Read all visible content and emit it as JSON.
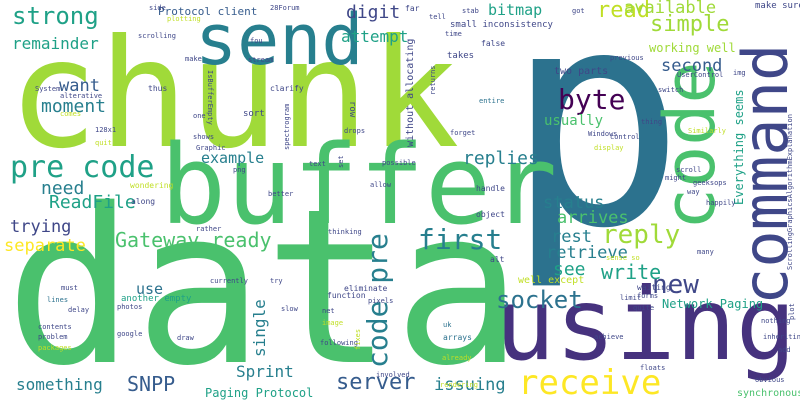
{
  "words": {
    "p": "p",
    "chunk": "chunk",
    "data": "data",
    "buffer": "buffer",
    "send": "send",
    "using": "using",
    "code": "code",
    "command": "command",
    "receive": "receive",
    "strong": "strong",
    "pre_code": "pre code",
    "gateway_ready": "Gateway ready",
    "first": "first",
    "byte": "byte",
    "socket": "socket",
    "server": "server",
    "code_pre": "code pre",
    "reply": "reply",
    "new": "new",
    "read": "read",
    "simple": "simple",
    "available": "available",
    "second": "second",
    "status": "status",
    "arrives": "arrives",
    "rest": "rest",
    "retrieve": "retrieve",
    "write": "write",
    "see": "see",
    "attempt": "attempt",
    "digit": "digit",
    "bitmap": "bitmap",
    "remainder": "remainder",
    "want": "want",
    "moment": "moment",
    "need": "need",
    "readfile": "ReadFile",
    "trying": "trying",
    "separate": "separate",
    "example": "example",
    "replies": "replies",
    "snpp": "SNPP",
    "sprint": "Sprint",
    "something": "something",
    "issuing": "issuing",
    "use": "use",
    "single": "single",
    "paging_protocol": "Paging Protocol",
    "network_paging": "Network Paging",
    "synchronous": "synchronous",
    "usually": "usually",
    "working_well": "working well",
    "everything_seems": "Everything seems",
    "make_sure": "make sure",
    "well_except": "well except",
    "protocol_client": "Protocol client",
    "small_inconsistency": "small inconsistency",
    "without_allocating": "without allocating",
    "two_parts": "two parts",
    "another_empty": "another empty",
    "sort": "sort",
    "thus": "thus",
    "clarify": "clarify",
    "takes": "takes",
    "false": "false",
    "entire": "entire",
    "row": "row",
    "drops": "drops",
    "forget": "forget",
    "handle": "handle",
    "object": "object",
    "eliminate": "eliminate",
    "function": "function",
    "image": "image",
    "following": "following",
    "pixels": "pixels",
    "involved": "involved",
    "arrays": "arrays",
    "uk": "uk",
    "alt": "alt",
    "waiting": "waiting",
    "limit": "limit",
    "quite": "quite",
    "forms": "forms",
    "many": "many",
    "happily": "happily",
    "nothing": "nothing",
    "inheriting": "inheriting",
    "add": "add",
    "obvious": "obvious",
    "graphic": "Graphic",
    "png": "png",
    "wondering": "wondering",
    "along": "along",
    "rather": "rather",
    "currently": "currently",
    "must": "must",
    "lines": "lines",
    "delay": "delay",
    "contents": "contents",
    "problem": "problem",
    "google": "google",
    "photos": "photos",
    "draw": "draw",
    "net": "net",
    "better": "better",
    "scroll": "scroll",
    "might": "might",
    "geeksops": "geeksops",
    "way": "way",
    "display": "display",
    "control": "control",
    "windows": "Windows",
    "similarly": "Similarly",
    "previous": "previous",
    "usercontrol": "UserControl",
    "switch": "switch",
    "thing": "thing",
    "got": "got",
    "tell": "tell",
    "far": "far",
    "stab": "stab",
    "forum": "28Forum",
    "time": "time",
    "side": "side",
    "plotting": "plotting",
    "scrolling": "scrolling",
    "make": "make",
    "stream": "stream",
    "fou": "fou",
    "isbufferempty": "IsBufferEmpty",
    "one": "one",
    "alterative": "alterative",
    "comes": "comes",
    "shows": "shows",
    "spectrogram": "spectrogram",
    "text": "text",
    "set": "set",
    "possible": "possible",
    "allow": "allow",
    "thinking": "thinking",
    "try": "try",
    "slow": "slow",
    "system": "System",
    "x": "128x1",
    "quit": "quit",
    "returns": "returns",
    "plot": "plot",
    "explain": "ScrollingGraphicsAlgorithmExplanation",
    "img": "img",
    "fixes": "fixes",
    "rendering": "rendering",
    "achieve": "achieve",
    "floats": "floats",
    "sense_so": "sense so",
    "already": "already",
    "packages": "packages"
  },
  "colors": {
    "green_light": "#a0da39",
    "green": "#4ac16d",
    "green_mid": "#5ec962",
    "teal": "#1fa187",
    "teal_dark": "#277f8e",
    "blue": "#2c728e",
    "blue_dark": "#365c8d",
    "indigo": "#3f4788",
    "purple": "#46327e",
    "violet": "#440154",
    "yellow": "#fde725",
    "yellow_green": "#c0df25"
  }
}
